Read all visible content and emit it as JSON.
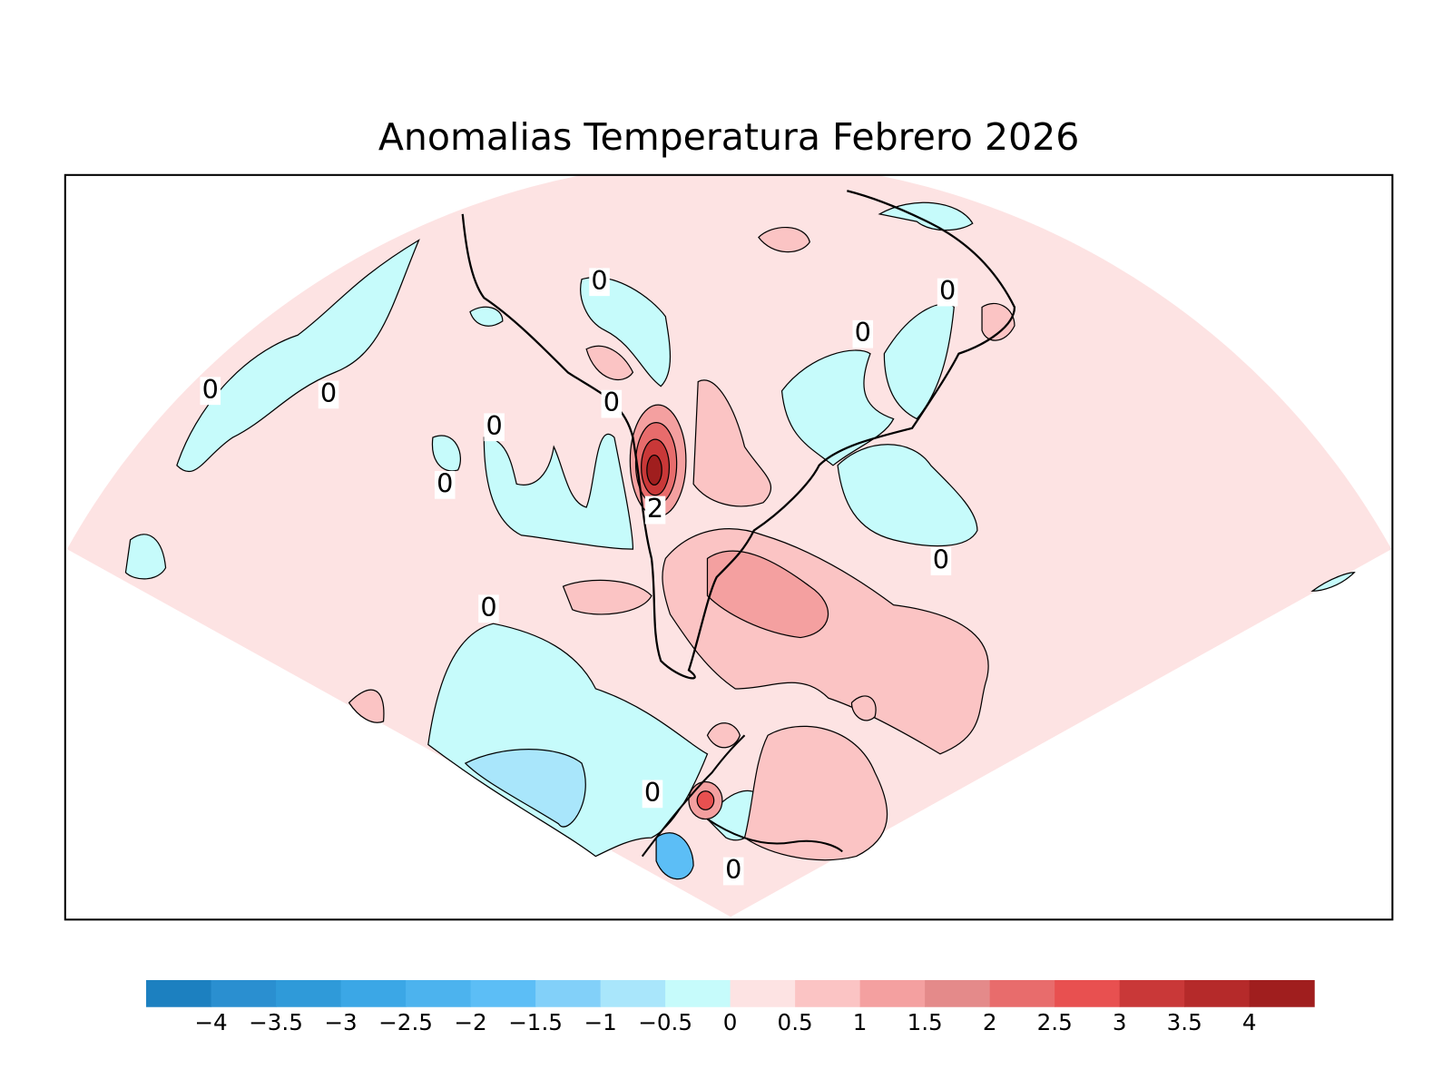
{
  "title": "Anomalias Temperatura Febrero 2026",
  "contour_labels": [
    0,
    0,
    0,
    0,
    0,
    0,
    0,
    0,
    2,
    0,
    0,
    0,
    0
  ],
  "colorbar": {
    "colors": [
      "#1c80c0",
      "#2a8fd0",
      "#2f9ad9",
      "#3ba7e6",
      "#4cb3ee",
      "#5cbef6",
      "#82d0f9",
      "#a9e6fb",
      "#c6fbfb",
      "#fde3e3",
      "#fbc4c4",
      "#f4a0a0",
      "#e48a8a",
      "#e86c6c",
      "#e85050",
      "#c93838",
      "#b52a2a",
      "#a01e1e"
    ],
    "ticks": [
      {
        "value": -4,
        "label": "−4"
      },
      {
        "value": -3.5,
        "label": "−3.5"
      },
      {
        "value": -3,
        "label": "−3"
      },
      {
        "value": -2.5,
        "label": "−2.5"
      },
      {
        "value": -2,
        "label": "−2"
      },
      {
        "value": -1.5,
        "label": "−1.5"
      },
      {
        "value": -1,
        "label": "−1"
      },
      {
        "value": -0.5,
        "label": "−0.5"
      },
      0,
      0.5,
      1,
      1.5,
      2,
      2.5,
      3,
      3.5,
      4
    ]
  }
}
